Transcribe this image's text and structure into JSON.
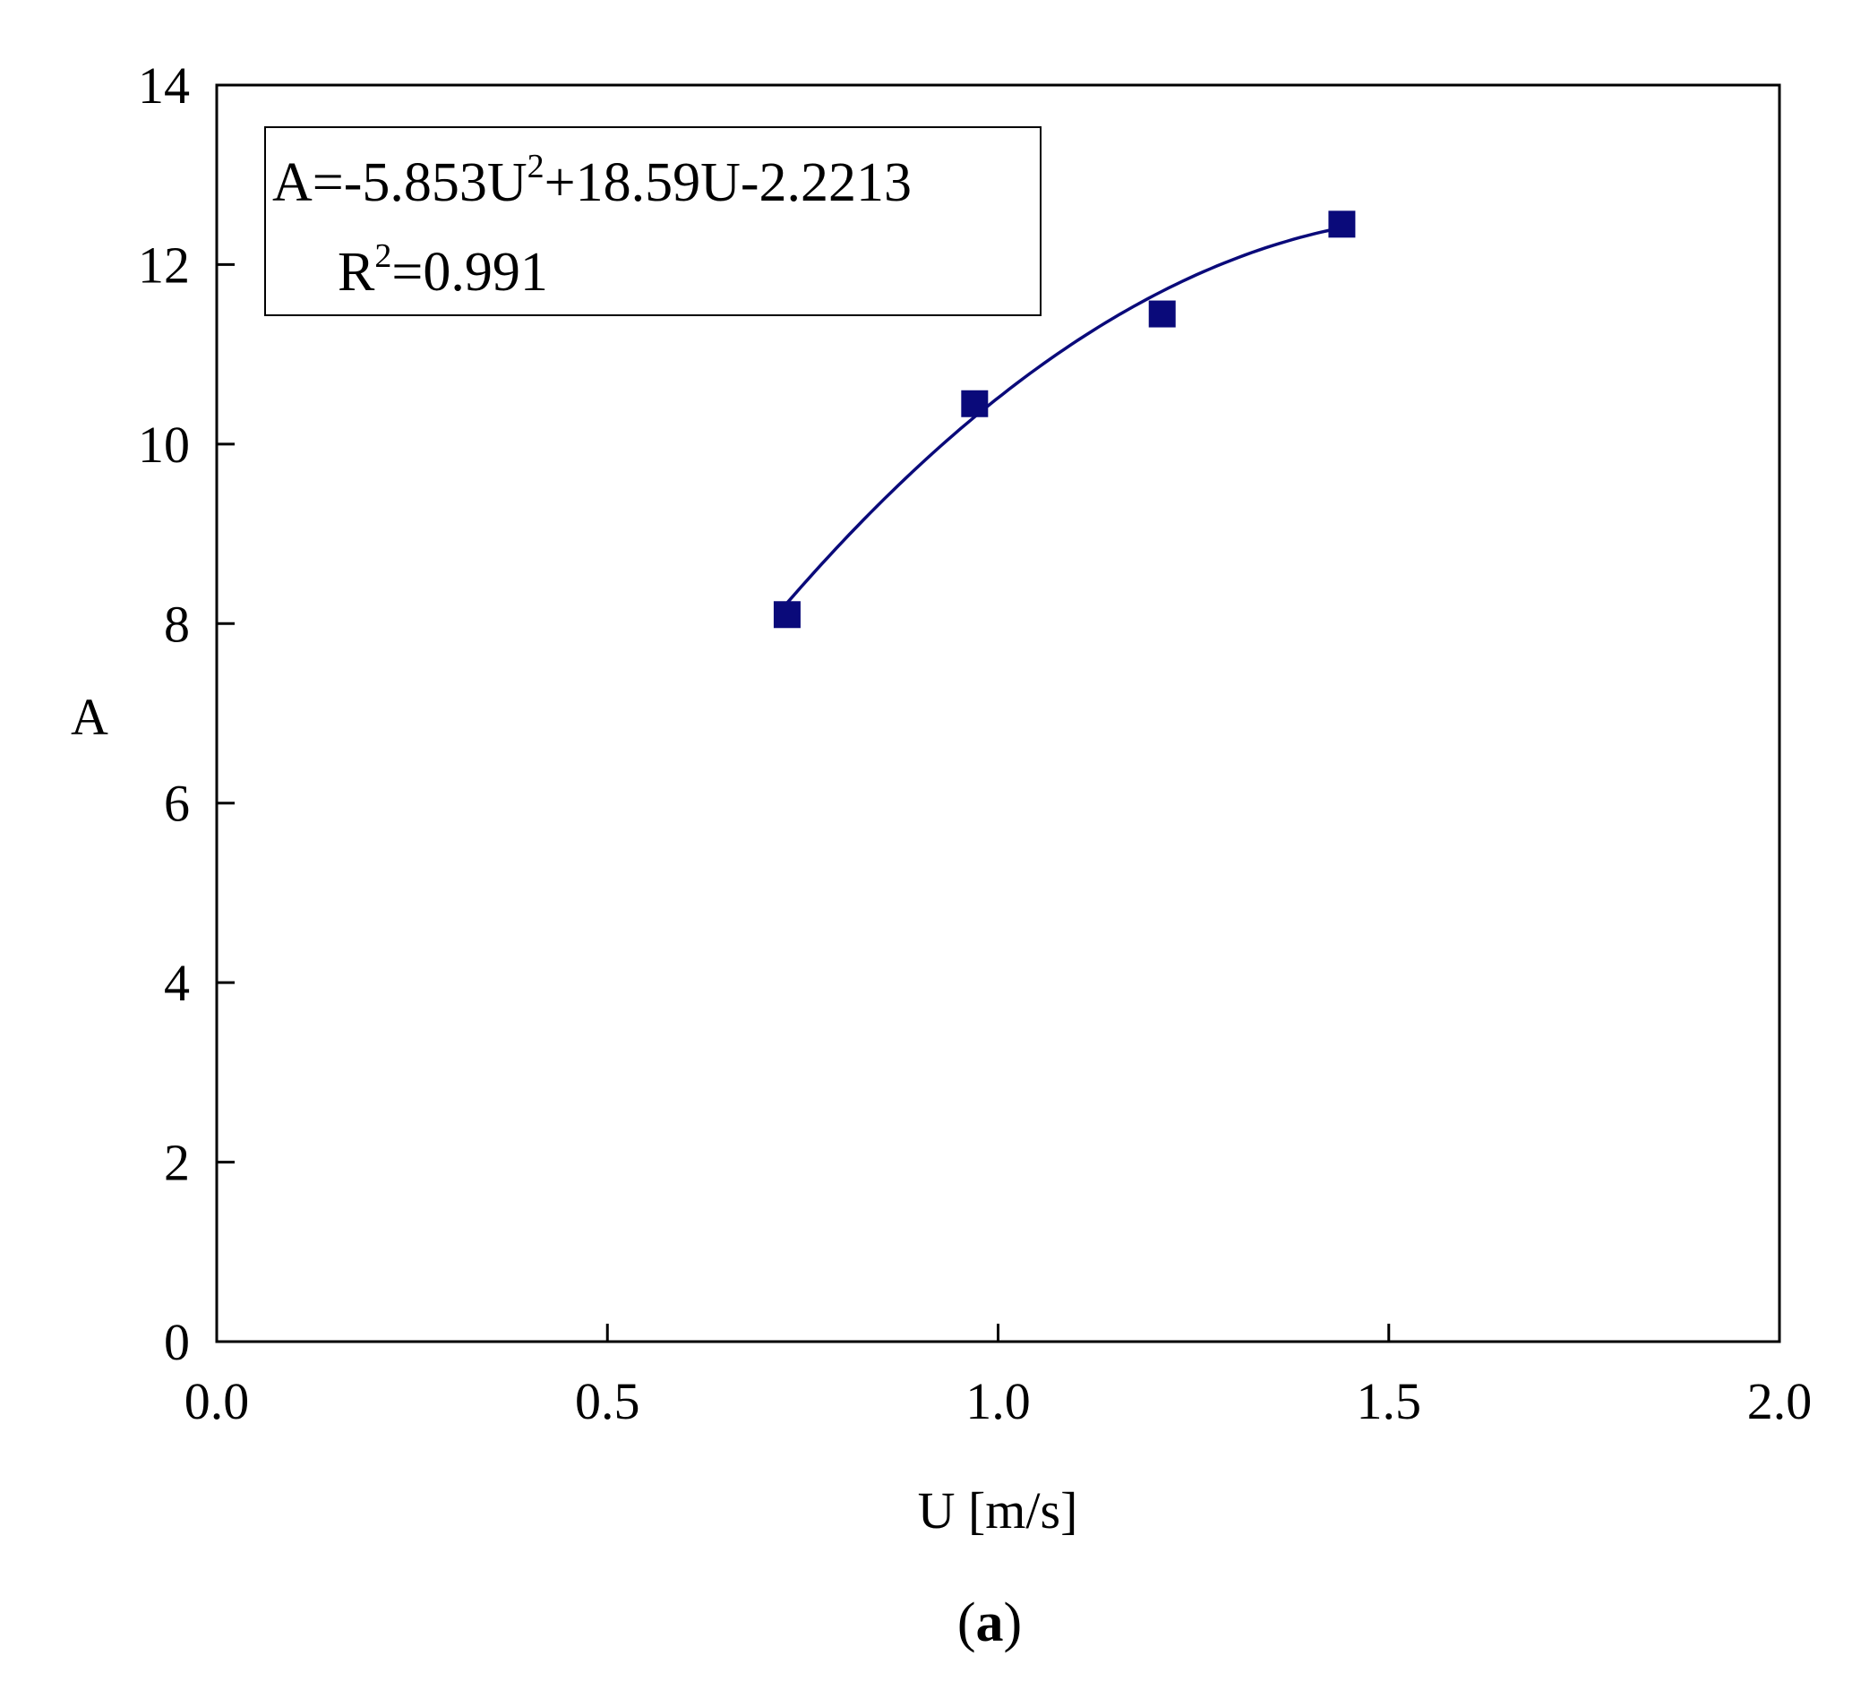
{
  "chart_data": {
    "type": "scatter",
    "xlabel": "U [m/s]",
    "ylabel": "A",
    "xlim": [
      0.0,
      2.0
    ],
    "ylim": [
      0,
      14
    ],
    "xticks": [
      "0.0",
      "0.5",
      "1.0",
      "1.5",
      "2.0"
    ],
    "yticks": [
      "0",
      "2",
      "4",
      "6",
      "8",
      "10",
      "12",
      "14"
    ],
    "xtick_values": [
      0.0,
      0.5,
      1.0,
      1.5,
      2.0
    ],
    "ytick_values": [
      0,
      2,
      4,
      6,
      8,
      10,
      12,
      14
    ],
    "grid": false,
    "series": [
      {
        "marker": "square",
        "color": "#0a0a7a",
        "x": [
          0.73,
          0.97,
          1.21,
          1.44
        ],
        "y": [
          8.1,
          10.45,
          11.45,
          12.45
        ]
      }
    ],
    "fit": {
      "kind": "polynomial",
      "coefficients": [
        -5.853,
        18.59,
        -2.2213
      ],
      "x_range": [
        0.73,
        1.44
      ],
      "color": "#0a0a7a"
    },
    "annotation": {
      "equation_prefix": "A=-5.853U",
      "equation_sup": "2",
      "equation_suffix": "+18.59U-2.2213",
      "r2_prefix": "R",
      "r2_sup": "2",
      "r2_suffix": "=0.991"
    },
    "panel_label": {
      "open": "(",
      "letter": "a",
      "close": ")"
    }
  }
}
